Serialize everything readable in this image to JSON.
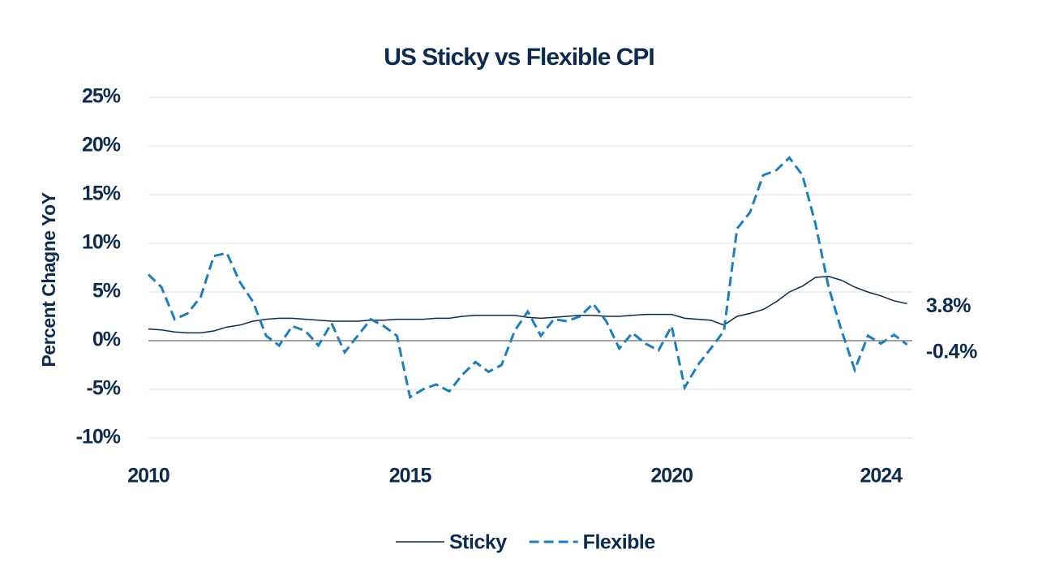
{
  "chart_data": {
    "type": "line",
    "title": "US Sticky vs Flexible CPI",
    "y_label": "Percent Chagne YoY",
    "x": [
      2010,
      2010.25,
      2010.5,
      2010.75,
      2011,
      2011.25,
      2011.5,
      2011.75,
      2012,
      2012.25,
      2012.5,
      2012.75,
      2013,
      2013.25,
      2013.5,
      2013.75,
      2014,
      2014.25,
      2014.5,
      2014.75,
      2015,
      2015.25,
      2015.5,
      2015.75,
      2016,
      2016.25,
      2016.5,
      2016.75,
      2017,
      2017.25,
      2017.5,
      2017.75,
      2018,
      2018.25,
      2018.5,
      2018.75,
      2019,
      2019.25,
      2019.5,
      2019.75,
      2020,
      2020.25,
      2020.5,
      2020.75,
      2021,
      2021.25,
      2021.5,
      2021.75,
      2022,
      2022.25,
      2022.5,
      2022.75,
      2023,
      2023.25,
      2023.5,
      2023.75,
      2024,
      2024.25,
      2024.5
    ],
    "series": [
      {
        "name": "Sticky",
        "color": "#0d2b4e",
        "dash": false,
        "end_label": "3.8%",
        "values": [
          1.2,
          1.1,
          0.9,
          0.8,
          0.8,
          1.0,
          1.4,
          1.6,
          2.0,
          2.2,
          2.3,
          2.3,
          2.2,
          2.1,
          2.0,
          2.0,
          2.0,
          2.1,
          2.1,
          2.2,
          2.2,
          2.2,
          2.3,
          2.3,
          2.5,
          2.6,
          2.6,
          2.6,
          2.6,
          2.4,
          2.3,
          2.4,
          2.5,
          2.6,
          2.6,
          2.5,
          2.5,
          2.6,
          2.7,
          2.7,
          2.7,
          2.3,
          2.2,
          2.1,
          1.6,
          2.5,
          2.8,
          3.2,
          4.0,
          5.0,
          5.6,
          6.5,
          6.6,
          6.2,
          5.5,
          5.0,
          4.6,
          4.1,
          3.8
        ]
      },
      {
        "name": "Flexible",
        "color": "#1a7fc1",
        "dash": true,
        "end_label": "-0.4%",
        "values": [
          6.8,
          5.5,
          2.2,
          2.8,
          4.5,
          8.7,
          9.0,
          6.0,
          4.0,
          0.5,
          -0.5,
          1.5,
          1.0,
          -0.5,
          1.8,
          -1.2,
          0.5,
          2.2,
          1.5,
          0.5,
          -5.8,
          -5.0,
          -4.5,
          -5.2,
          -3.5,
          -2.2,
          -3.2,
          -2.5,
          1.0,
          3.0,
          0.5,
          2.2,
          2.0,
          2.5,
          3.8,
          2.0,
          -0.8,
          0.8,
          -0.3,
          -1.0,
          1.5,
          -4.8,
          -2.5,
          -0.8,
          1.0,
          11.5,
          13.2,
          17.0,
          17.5,
          18.8,
          17.0,
          12.0,
          5.5,
          1.0,
          -3.0,
          0.5,
          -0.3,
          0.6,
          -0.4
        ]
      }
    ],
    "xlim": [
      2010,
      2024.6
    ],
    "xticks": [
      2010,
      2015,
      2020,
      2024
    ],
    "ylim": [
      -10,
      25
    ],
    "yticks": [
      {
        "value": -10,
        "label": "-10%"
      },
      {
        "value": -5,
        "label": "-5%"
      },
      {
        "value": 0,
        "label": "0%"
      },
      {
        "value": 5,
        "label": "5%"
      },
      {
        "value": 10,
        "label": "10%"
      },
      {
        "value": 15,
        "label": "15%"
      },
      {
        "value": 20,
        "label": "20%"
      },
      {
        "value": 25,
        "label": "25%"
      }
    ],
    "grid": true,
    "legend": "bottom"
  }
}
